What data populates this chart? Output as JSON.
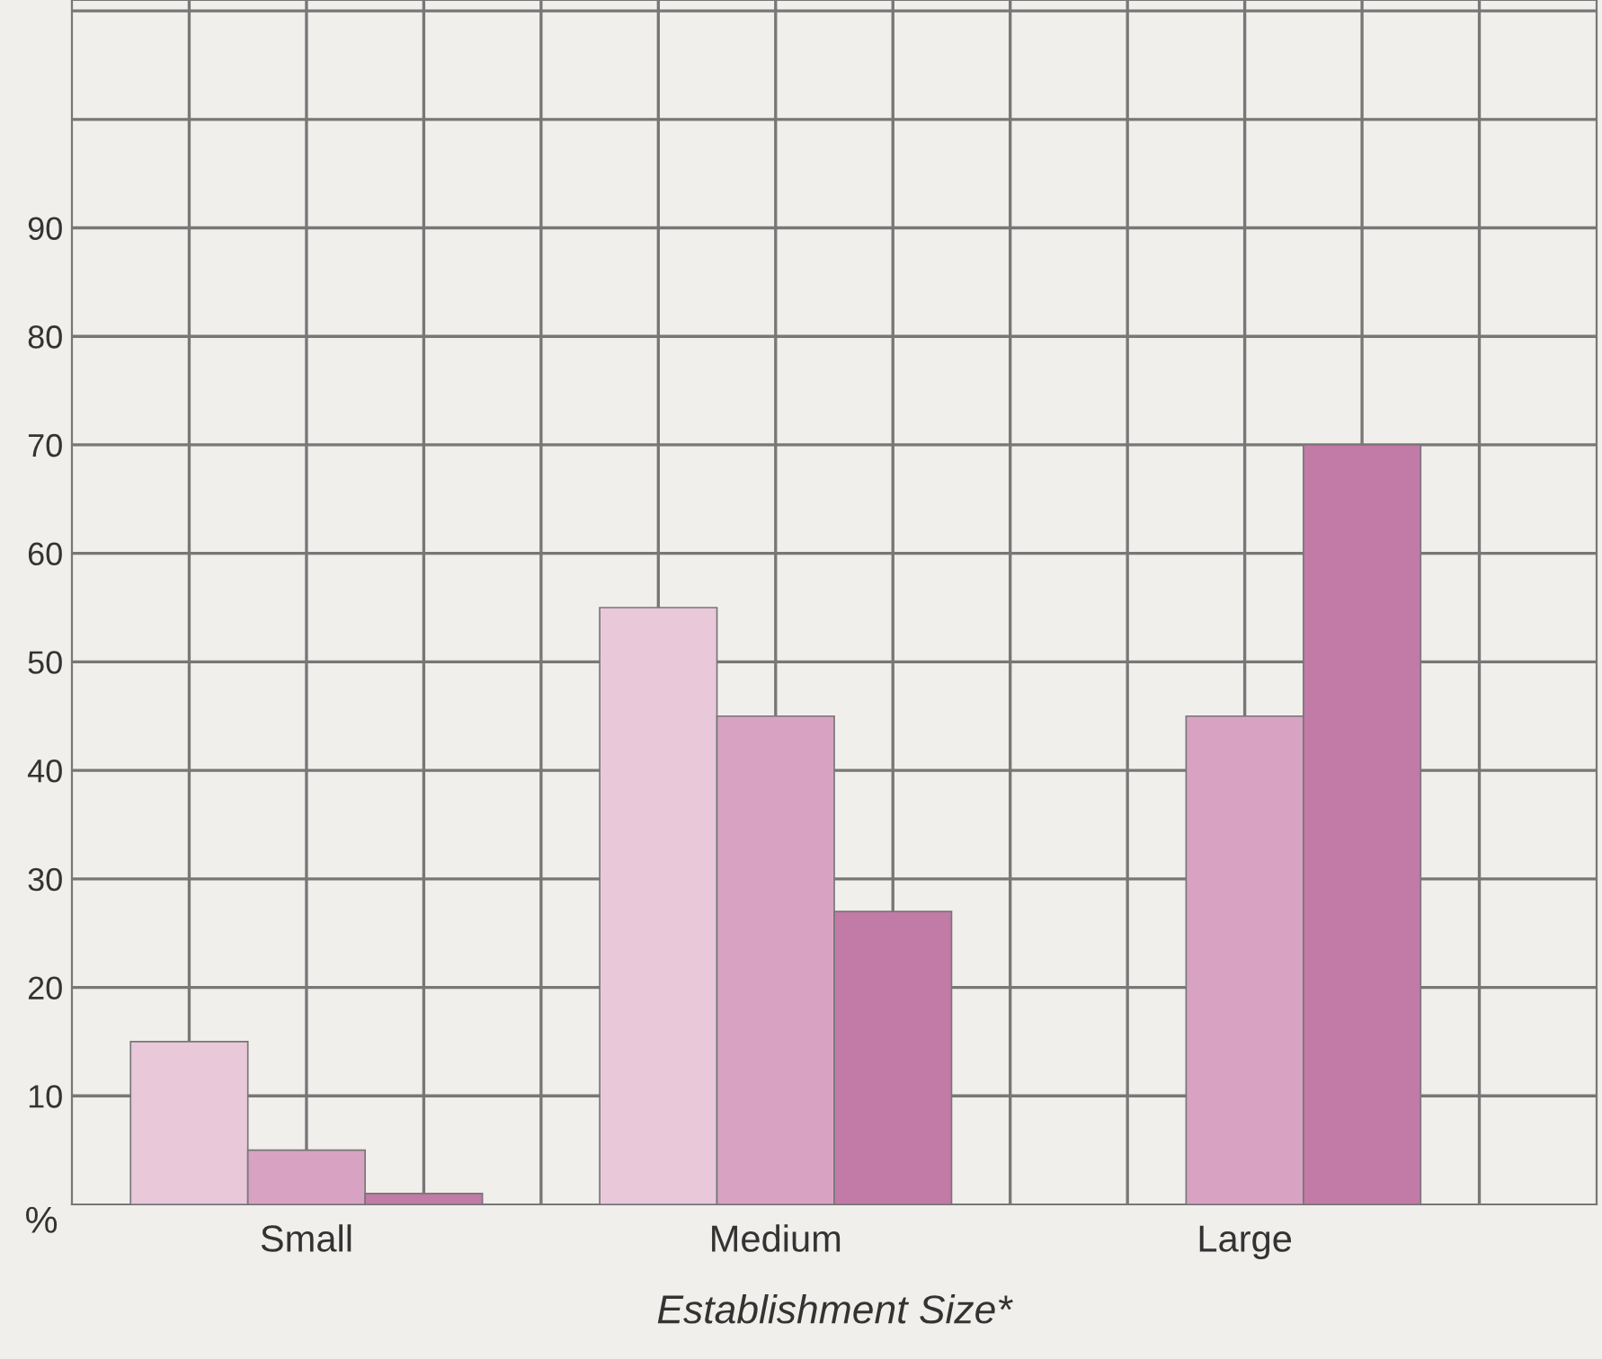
{
  "chart_data": {
    "type": "bar",
    "xlabel": "Establishment Size*",
    "ylabel": "%",
    "categories": [
      "Small",
      "Medium",
      "Large"
    ],
    "series": [
      {
        "color": "#e9c8da",
        "values": [
          15,
          55,
          null
        ]
      },
      {
        "color": "#d8a3c2",
        "values": [
          5,
          45,
          45
        ]
      },
      {
        "color": "#c27aa6",
        "values": [
          1,
          27,
          70
        ]
      }
    ],
    "ylim": [
      0,
      111
    ],
    "yticks": [
      10,
      20,
      30,
      40,
      50,
      60,
      70,
      80,
      90,
      {
        "value": 100,
        "label": null
      },
      {
        "value": 110,
        "label": null
      }
    ],
    "grid": true
  }
}
